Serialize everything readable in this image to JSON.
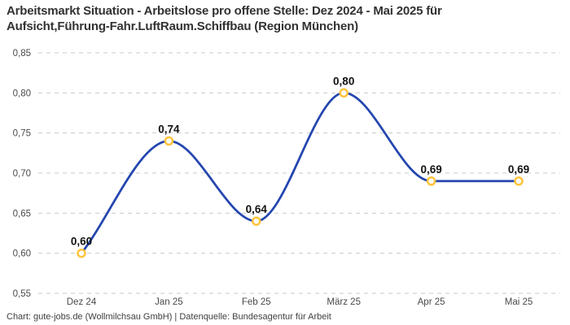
{
  "header": {
    "title": "Arbeitsmarkt Situation - Arbeitslose pro offene Stelle: Dez 2024 - Mai 2025 für Aufsicht,Führung-Fahr.LuftRaum.Schiffbau (Region München)"
  },
  "footer": {
    "attribution": "Chart: gute-jobs.de (Wollmilchsau GmbH) | Datenquelle: Bundesagentur für Arbeit"
  },
  "chart_data": {
    "type": "line",
    "title": "Arbeitsmarkt Situation - Arbeitslose pro offene Stelle: Dez 2024 - Mai 2025 für Aufsicht,Führung-Fahr.LuftRaum.Schiffbau (Region München)",
    "categories": [
      "Dez 24",
      "Jan 25",
      "Feb 25",
      "März 25",
      "Apr 25",
      "Mai 25"
    ],
    "values": [
      0.6,
      0.74,
      0.64,
      0.8,
      0.69,
      0.69
    ],
    "value_labels": [
      "0,60",
      "0,74",
      "0,64",
      "0,80",
      "0,69",
      "0,69"
    ],
    "xlabel": "",
    "ylabel": "",
    "ylim": [
      0.55,
      0.85
    ],
    "ytick_values": [
      0.55,
      0.6,
      0.65,
      0.7,
      0.75,
      0.8,
      0.85
    ],
    "ytick_labels": [
      "0,55",
      "0,60",
      "0,65",
      "0,70",
      "0,75",
      "0,80",
      "0,85"
    ],
    "grid": "horizontal-dashed",
    "legend": "none",
    "curve": "monotone",
    "line_color": "#2446af",
    "marker_ring_color": "#fdc43c",
    "marker_fill_color": "#ffffff",
    "grid_color": "#c9c9c9"
  }
}
